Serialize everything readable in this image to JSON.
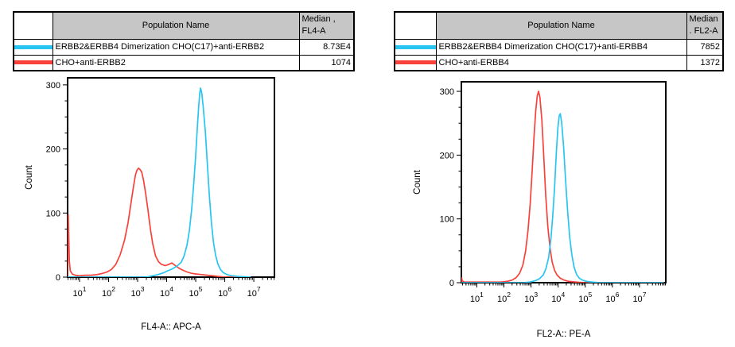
{
  "colors": {
    "cyan_series": "#29C5F2",
    "red_series": "#F9413A",
    "table_header_bg": "#C6C6C6",
    "axis": "#000000",
    "background": "#FFFFFF"
  },
  "left_panel": {
    "table": {
      "population_header": "Population Name",
      "median_header_line1": "Median ,",
      "median_header_line2": "FL4-A",
      "rows": [
        {
          "swatch_color": "#29C5F2",
          "name": "ERBB2&ERBB4 Dimerization CHO(C17)+anti-ERBB2",
          "median": "8.73E4"
        },
        {
          "swatch_color": "#F9413A",
          "name": "CHO+anti-ERBB2",
          "median": "1074"
        }
      ]
    }
  },
  "right_panel": {
    "table": {
      "population_header": "Population Name",
      "median_header_line1": "Median",
      "median_header_line2": ". FL2-A",
      "rows": [
        {
          "swatch_color": "#29C5F2",
          "name": "ERBB2&ERBB4 Dimerization CHO(C17)+anti-ERBB4",
          "median": "7852"
        },
        {
          "swatch_color": "#F9413A",
          "name": "CHO+anti-ERBB4",
          "median": "1372"
        }
      ]
    }
  },
  "chart_data": [
    {
      "type": "line",
      "title": "",
      "xlabel": "FL4-A:: APC-A",
      "ylabel": "Count",
      "x_scale": "log10",
      "x_decade_labels": [
        1,
        2,
        3,
        4,
        5,
        6,
        7
      ],
      "xlim_log10": [
        0.59,
        7.71
      ],
      "ylim": [
        0,
        311
      ],
      "yticks": [
        0,
        100,
        200,
        300
      ],
      "y_minor_step": 25,
      "grid": false,
      "legend_position": "none",
      "series": [
        {
          "name": "CHO+anti-ERBB2",
          "color": "#F9413A",
          "median": 1074,
          "peak_count": 170,
          "points_log10x_count": [
            [
              0.59,
              0
            ],
            [
              0.6,
              90
            ],
            [
              0.615,
              97
            ],
            [
              0.63,
              60
            ],
            [
              0.65,
              25
            ],
            [
              0.68,
              10
            ],
            [
              0.75,
              5
            ],
            [
              0.85,
              3
            ],
            [
              1.0,
              2
            ],
            [
              1.2,
              3
            ],
            [
              1.4,
              3
            ],
            [
              1.6,
              4
            ],
            [
              1.8,
              6
            ],
            [
              1.95,
              8
            ],
            [
              2.1,
              12
            ],
            [
              2.25,
              20
            ],
            [
              2.4,
              35
            ],
            [
              2.55,
              58
            ],
            [
              2.67,
              85
            ],
            [
              2.77,
              115
            ],
            [
              2.86,
              142
            ],
            [
              2.93,
              160
            ],
            [
              2.98,
              167
            ],
            [
              3.03,
              170
            ],
            [
              3.08,
              168
            ],
            [
              3.14,
              164
            ],
            [
              3.2,
              152
            ],
            [
              3.28,
              130
            ],
            [
              3.36,
              103
            ],
            [
              3.44,
              75
            ],
            [
              3.52,
              52
            ],
            [
              3.62,
              33
            ],
            [
              3.72,
              24
            ],
            [
              3.82,
              20
            ],
            [
              3.95,
              18
            ],
            [
              4.08,
              20
            ],
            [
              4.18,
              22
            ],
            [
              4.3,
              18
            ],
            [
              4.42,
              14
            ],
            [
              4.55,
              11
            ],
            [
              4.7,
              8
            ],
            [
              4.85,
              6
            ],
            [
              5.0,
              5
            ],
            [
              5.2,
              4
            ],
            [
              5.4,
              3
            ],
            [
              5.6,
              2
            ],
            [
              5.8,
              1
            ],
            [
              6.0,
              0
            ],
            [
              6.9,
              0
            ]
          ]
        },
        {
          "name": "ERBB2&ERBB4 Dimerization CHO(C17)+anti-ERBB2",
          "color": "#29C5F2",
          "median": 87300,
          "peak_count": 295,
          "points_log10x_count": [
            [
              0.59,
              0
            ],
            [
              3.3,
              0
            ],
            [
              3.5,
              2
            ],
            [
              3.7,
              4
            ],
            [
              3.9,
              7
            ],
            [
              4.05,
              10
            ],
            [
              4.2,
              13
            ],
            [
              4.35,
              17
            ],
            [
              4.5,
              23
            ],
            [
              4.6,
              33
            ],
            [
              4.7,
              50
            ],
            [
              4.78,
              72
            ],
            [
              4.86,
              105
            ],
            [
              4.93,
              145
            ],
            [
              5.0,
              190
            ],
            [
              5.05,
              230
            ],
            [
              5.1,
              265
            ],
            [
              5.14,
              288
            ],
            [
              5.17,
              295
            ],
            [
              5.21,
              287
            ],
            [
              5.26,
              265
            ],
            [
              5.33,
              228
            ],
            [
              5.4,
              178
            ],
            [
              5.47,
              127
            ],
            [
              5.54,
              85
            ],
            [
              5.61,
              55
            ],
            [
              5.68,
              35
            ],
            [
              5.76,
              21
            ],
            [
              5.85,
              12
            ],
            [
              5.95,
              7
            ],
            [
              6.08,
              4
            ],
            [
              6.25,
              2
            ],
            [
              6.5,
              1
            ],
            [
              6.9,
              0
            ]
          ]
        }
      ]
    },
    {
      "type": "line",
      "title": "",
      "xlabel": "FL2-A:: PE-A",
      "ylabel": "Count",
      "x_scale": "log10",
      "x_decade_labels": [
        1,
        2,
        3,
        4,
        5,
        6,
        7
      ],
      "xlim_log10": [
        0.43,
        7.97
      ],
      "ylim": [
        0,
        315
      ],
      "yticks": [
        0,
        100,
        200,
        300
      ],
      "y_minor_step": 25,
      "grid": false,
      "legend_position": "none",
      "series": [
        {
          "name": "CHO+anti-ERBB4",
          "color": "#F9413A",
          "median": 1372,
          "peak_count": 300,
          "points_log10x_count": [
            [
              0.43,
              0
            ],
            [
              0.44,
              8
            ],
            [
              0.46,
              3
            ],
            [
              0.55,
              1
            ],
            [
              1.0,
              1
            ],
            [
              1.5,
              1
            ],
            [
              1.9,
              1
            ],
            [
              2.1,
              2
            ],
            [
              2.3,
              4
            ],
            [
              2.45,
              8
            ],
            [
              2.58,
              15
            ],
            [
              2.7,
              28
            ],
            [
              2.8,
              50
            ],
            [
              2.89,
              82
            ],
            [
              2.97,
              125
            ],
            [
              3.04,
              175
            ],
            [
              3.11,
              228
            ],
            [
              3.17,
              268
            ],
            [
              3.23,
              293
            ],
            [
              3.28,
              300
            ],
            [
              3.33,
              290
            ],
            [
              3.4,
              255
            ],
            [
              3.47,
              198
            ],
            [
              3.54,
              138
            ],
            [
              3.62,
              88
            ],
            [
              3.7,
              54
            ],
            [
              3.78,
              32
            ],
            [
              3.87,
              19
            ],
            [
              3.96,
              12
            ],
            [
              4.08,
              7
            ],
            [
              4.22,
              4
            ],
            [
              4.4,
              2
            ],
            [
              4.65,
              1
            ],
            [
              4.95,
              0
            ],
            [
              7.9,
              0
            ]
          ]
        },
        {
          "name": "ERBB2&ERBB4 Dimerization CHO(C17)+anti-ERBB4",
          "color": "#29C5F2",
          "median": 7852,
          "peak_count": 265,
          "points_log10x_count": [
            [
              0.43,
              0
            ],
            [
              2.75,
              0
            ],
            [
              2.95,
              1
            ],
            [
              3.15,
              3
            ],
            [
              3.3,
              6
            ],
            [
              3.45,
              12
            ],
            [
              3.55,
              22
            ],
            [
              3.65,
              40
            ],
            [
              3.73,
              68
            ],
            [
              3.8,
              105
            ],
            [
              3.87,
              152
            ],
            [
              3.93,
              202
            ],
            [
              3.99,
              242
            ],
            [
              4.04,
              262
            ],
            [
              4.08,
              265
            ],
            [
              4.13,
              251
            ],
            [
              4.2,
              214
            ],
            [
              4.27,
              163
            ],
            [
              4.35,
              112
            ],
            [
              4.43,
              70
            ],
            [
              4.51,
              42
            ],
            [
              4.59,
              24
            ],
            [
              4.68,
              13
            ],
            [
              4.78,
              7
            ],
            [
              4.9,
              4
            ],
            [
              5.05,
              2
            ],
            [
              5.25,
              1
            ],
            [
              5.5,
              0
            ],
            [
              7.9,
              0
            ]
          ]
        }
      ]
    }
  ]
}
